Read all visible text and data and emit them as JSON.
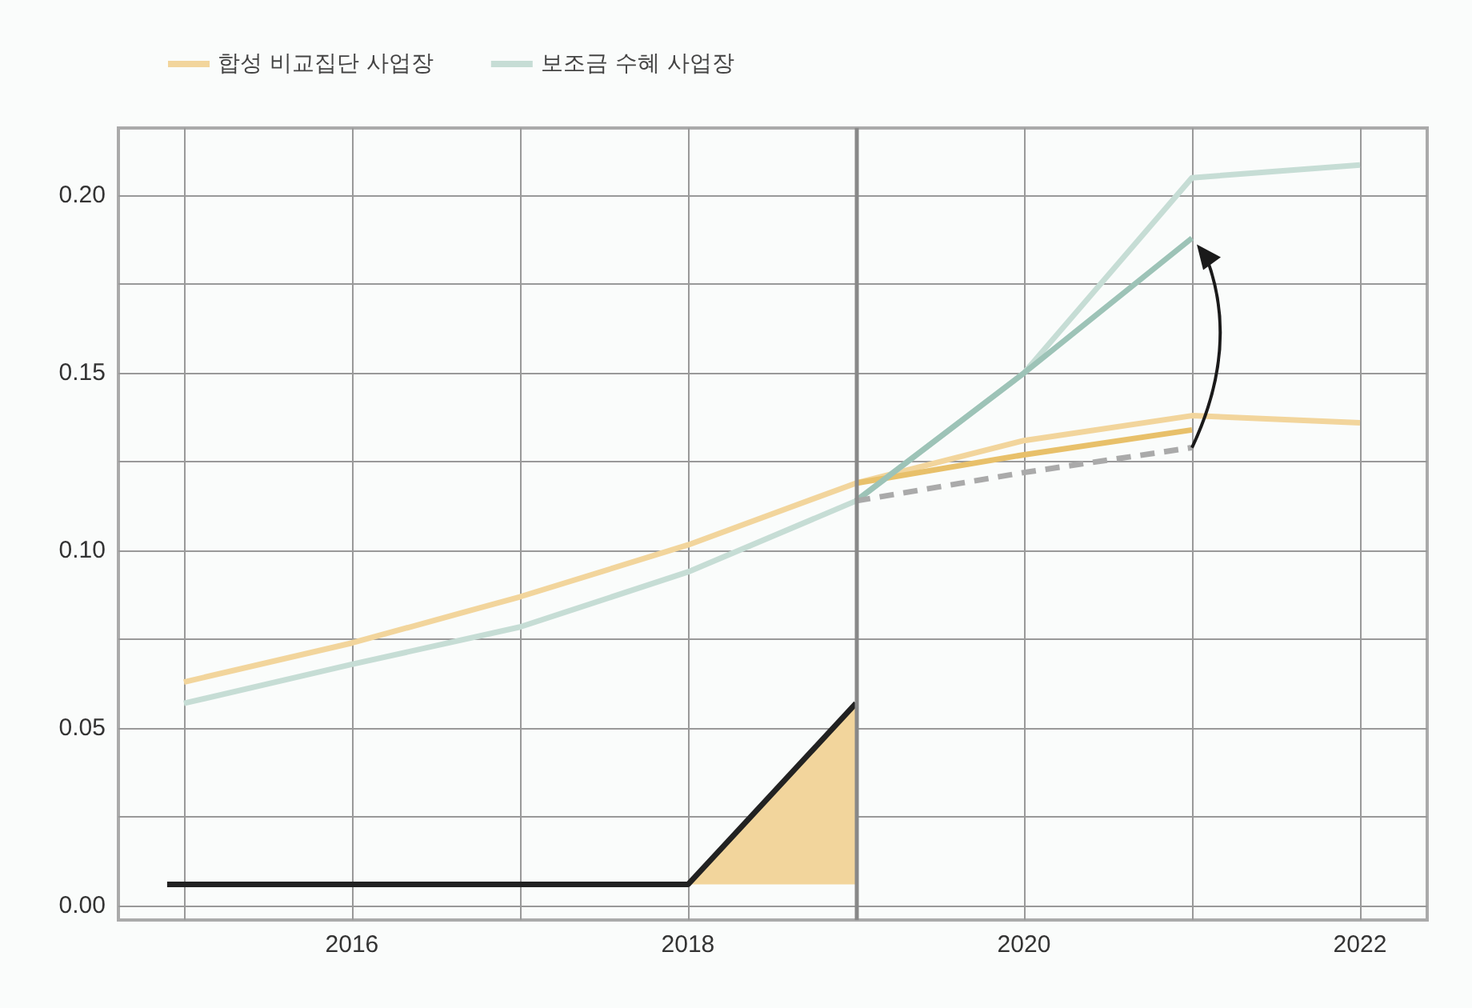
{
  "chart_data": {
    "type": "line",
    "legend": "top left",
    "grid": true,
    "xlim": [
      2014.61,
      2022.4
    ],
    "ylim": [
      -0.004,
      0.219
    ],
    "xticks": [
      {
        "value": 2015,
        "label": null
      },
      2016,
      {
        "value": 2017,
        "label": null
      },
      2018,
      {
        "value": 2019,
        "label": null
      },
      2020,
      {
        "value": 2021,
        "label": null
      },
      2022
    ],
    "yticks": [
      {
        "value": 0,
        "label": "0.00"
      },
      {
        "value": 0.025,
        "label": null
      },
      {
        "value": 0.05,
        "label": "0.05"
      },
      {
        "value": 0.075,
        "label": null
      },
      {
        "value": 0.1,
        "label": "0.10"
      },
      {
        "value": 0.125,
        "label": null
      },
      {
        "value": 0.15,
        "label": "0.15"
      },
      {
        "value": 0.175,
        "label": null
      },
      {
        "value": 0.2,
        "label": "0.20"
      }
    ],
    "ref_lines": [
      {
        "axis": "x",
        "value": 2019,
        "color": "#888888"
      }
    ],
    "series": [
      {
        "name": "합성 비교집단 사업장",
        "color": "#f2d59c",
        "x": [
          2015,
          2016,
          2017,
          2018,
          2019,
          2020,
          2021,
          2022
        ],
        "values": [
          0.063,
          0.074,
          0.087,
          0.1016,
          0.119,
          0.131,
          0.138,
          0.136
        ]
      },
      {
        "name": "보조금 수혜 사업장",
        "color": "#c6ddd5",
        "x": [
          2015,
          2016,
          2017,
          2018,
          2019,
          2020,
          2021,
          2022
        ],
        "values": [
          0.057,
          0.068,
          0.0785,
          0.094,
          0.114,
          0.15,
          0.205,
          0.2086
        ]
      },
      {
        "color": "#e8c06a",
        "x": [
          2019,
          2020,
          2021
        ],
        "values": [
          0.119,
          0.127,
          0.134
        ]
      },
      {
        "color": "#9dc3b7",
        "x": [
          2019,
          2020,
          2021
        ],
        "values": [
          0.114,
          0.15,
          0.188
        ]
      },
      {
        "color": "#aaaaaa",
        "line_style": "dashed",
        "x": [
          2019,
          2020,
          2021
        ],
        "values": [
          0.114,
          0.122,
          0.129
        ]
      },
      {
        "color": "#222222",
        "x": [
          2014.9,
          2018,
          2019
        ],
        "values": [
          0.006,
          0.006,
          0.057
        ],
        "lower": [
          null,
          0.006,
          0.006
        ],
        "upper": [
          null,
          0.006,
          0.057
        ]
      }
    ]
  }
}
